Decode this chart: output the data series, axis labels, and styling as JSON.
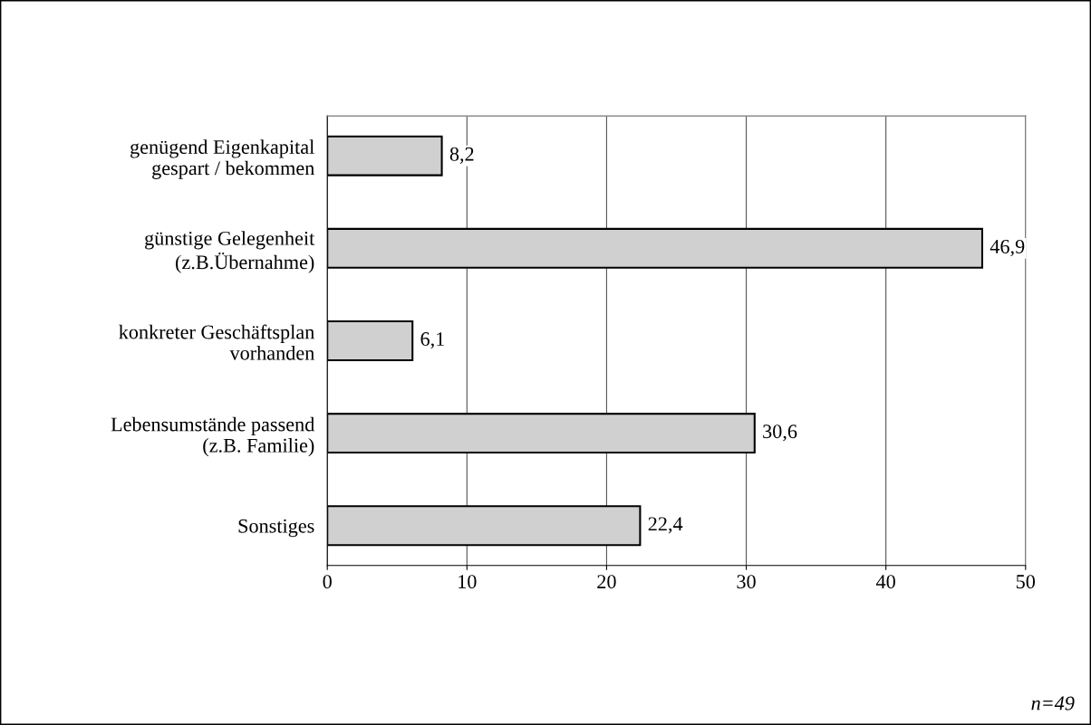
{
  "chart_data": {
    "type": "bar",
    "orientation": "horizontal",
    "categories": [
      "genügend Eigenkapital\ngespart / bekommen",
      "günstige Gelegenheit\n(z.B.Übernahme)",
      "konkreter Geschäftsplan\nvorhanden",
      "Lebensumstände passend\n(z.B. Familie)",
      "Sonstiges"
    ],
    "values": [
      8.2,
      46.9,
      6.1,
      30.6,
      22.4
    ],
    "value_labels": [
      "8,2",
      "46,9",
      "6,1",
      "30,6",
      "22,4"
    ],
    "color": "#d0d0d0",
    "xlim": [
      0,
      50
    ],
    "xticks": [
      0,
      10,
      20,
      30,
      40,
      50
    ],
    "grid": "x",
    "annotations": [
      "n=49"
    ]
  }
}
